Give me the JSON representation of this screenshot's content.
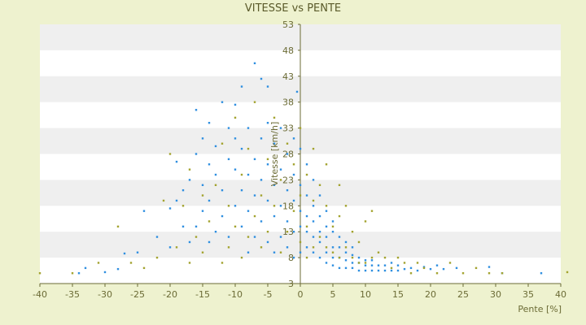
{
  "chart_data": {
    "type": "scatter",
    "title": "VITESSE vs PENTE",
    "xlabel": "Pente [%]",
    "ylabel": "Vitesse [km/h]",
    "xlim": [
      -40,
      40
    ],
    "ylim": [
      3,
      53
    ],
    "x_ticks": [
      -40,
      -35,
      -30,
      -25,
      -20,
      -15,
      -10,
      -5,
      0,
      5,
      10,
      15,
      20,
      25,
      30,
      35,
      40
    ],
    "y_ticks": [
      3,
      8,
      13,
      18,
      23,
      28,
      33,
      38,
      43,
      48,
      53
    ],
    "grid": "horizontal bands",
    "legend": "none",
    "colors": {
      "page_background": "#eef2cf",
      "plot_background": "#ffffff",
      "band": "#efefef",
      "axis": "#6b6b35",
      "text": "#6b6b35",
      "series_blue": "#2f8fe0",
      "series_olive": "#a3a32f"
    },
    "series": [
      {
        "color": "#2f8fe0",
        "points": [
          [
            -34,
            5.0
          ],
          [
            -33,
            6.0
          ],
          [
            -30,
            5.2
          ],
          [
            -28,
            5.8
          ],
          [
            -27,
            8.8
          ],
          [
            -25,
            9.0
          ],
          [
            -24,
            17.0
          ],
          [
            -22,
            12.0
          ],
          [
            -20,
            10.0
          ],
          [
            -20,
            17.5
          ],
          [
            -19,
            19.0
          ],
          [
            -19,
            26.5
          ],
          [
            -18,
            14.0
          ],
          [
            -18,
            21.0
          ],
          [
            -17,
            11.0
          ],
          [
            -17,
            23.0
          ],
          [
            -16,
            14.0
          ],
          [
            -16,
            28.0
          ],
          [
            -16,
            36.5
          ],
          [
            -15,
            17.0
          ],
          [
            -15,
            22.0
          ],
          [
            -15,
            31.0
          ],
          [
            -14,
            11.0
          ],
          [
            -14,
            19.0
          ],
          [
            -14,
            26.0
          ],
          [
            -14,
            34.0
          ],
          [
            -13,
            13.0
          ],
          [
            -13,
            24.0
          ],
          [
            -13,
            29.5
          ],
          [
            -12,
            16.0
          ],
          [
            -12,
            21.0
          ],
          [
            -12,
            38.0
          ],
          [
            -11,
            12.0
          ],
          [
            -11,
            27.0
          ],
          [
            -11,
            33.0
          ],
          [
            -10,
            18.0
          ],
          [
            -10,
            25.0
          ],
          [
            -10,
            31.0
          ],
          [
            -10,
            37.5
          ],
          [
            -9,
            14.0
          ],
          [
            -9,
            21.0
          ],
          [
            -9,
            29.0
          ],
          [
            -9,
            41.0
          ],
          [
            -8,
            9.0
          ],
          [
            -8,
            17.0
          ],
          [
            -8,
            24.0
          ],
          [
            -8,
            33.0
          ],
          [
            -7,
            12.0
          ],
          [
            -7,
            20.0
          ],
          [
            -7,
            27.0
          ],
          [
            -7,
            45.5
          ],
          [
            -6,
            15.0
          ],
          [
            -6,
            23.0
          ],
          [
            -6,
            31.0
          ],
          [
            -6,
            42.5
          ],
          [
            -5,
            11.0
          ],
          [
            -5,
            19.0
          ],
          [
            -5,
            26.0
          ],
          [
            -5,
            34.0
          ],
          [
            -5,
            41.0
          ],
          [
            -4,
            9.0
          ],
          [
            -4,
            16.0
          ],
          [
            -4,
            22.0
          ],
          [
            -4,
            30.0
          ],
          [
            -3,
            12.0
          ],
          [
            -3,
            18.0
          ],
          [
            -3,
            25.0
          ],
          [
            -3,
            33.0
          ],
          [
            -2,
            10.0
          ],
          [
            -2,
            15.0
          ],
          [
            -2,
            21.0
          ],
          [
            -2,
            28.0
          ],
          [
            -1,
            8.0
          ],
          [
            -1,
            13.0
          ],
          [
            -1,
            19.0
          ],
          [
            -1,
            24.0
          ],
          [
            -1,
            31.0
          ],
          [
            -0.5,
            40.0
          ],
          [
            0,
            9.0
          ],
          [
            0,
            14.0
          ],
          [
            0,
            17.0
          ],
          [
            0,
            22.0
          ],
          [
            0,
            29.0
          ],
          [
            1,
            10.0
          ],
          [
            1,
            13.0
          ],
          [
            1,
            16.0
          ],
          [
            1,
            20.0
          ],
          [
            1,
            26.0
          ],
          [
            2,
            9.0
          ],
          [
            2,
            12.0
          ],
          [
            2,
            15.0
          ],
          [
            2,
            18.0
          ],
          [
            2,
            23.0
          ],
          [
            3,
            8.0
          ],
          [
            3,
            11.0
          ],
          [
            3,
            13.0
          ],
          [
            3,
            16.0
          ],
          [
            3,
            20.0
          ],
          [
            4,
            7.0
          ],
          [
            4,
            9.0
          ],
          [
            4,
            12.0
          ],
          [
            4,
            14.0
          ],
          [
            4,
            17.0
          ],
          [
            5,
            6.5
          ],
          [
            5,
            8.0
          ],
          [
            5,
            10.0
          ],
          [
            5,
            13.0
          ],
          [
            5,
            15.0
          ],
          [
            6,
            6.0
          ],
          [
            6,
            8.0
          ],
          [
            6,
            10.0
          ],
          [
            6,
            12.0
          ],
          [
            7,
            6.0
          ],
          [
            7,
            7.5
          ],
          [
            7,
            9.0
          ],
          [
            7,
            11.0
          ],
          [
            8,
            6.0
          ],
          [
            8,
            7.0
          ],
          [
            8,
            8.5
          ],
          [
            8,
            10.0
          ],
          [
            9,
            5.5
          ],
          [
            9,
            7.0
          ],
          [
            9,
            8.0
          ],
          [
            10,
            5.5
          ],
          [
            10,
            6.5
          ],
          [
            10,
            7.5
          ],
          [
            11,
            5.5
          ],
          [
            11,
            6.5
          ],
          [
            11,
            7.5
          ],
          [
            12,
            5.5
          ],
          [
            12,
            6.5
          ],
          [
            13,
            5.5
          ],
          [
            13,
            6.5
          ],
          [
            14,
            5.5
          ],
          [
            14,
            7.0
          ],
          [
            15,
            5.5
          ],
          [
            15,
            6.5
          ],
          [
            16,
            5.8
          ],
          [
            17,
            6.0
          ],
          [
            18,
            5.5
          ],
          [
            19,
            6.2
          ],
          [
            20,
            5.8
          ],
          [
            21,
            6.5
          ],
          [
            22,
            5.8
          ],
          [
            24,
            6.0
          ],
          [
            29,
            6.2
          ],
          [
            31,
            5.0
          ],
          [
            37,
            5.0
          ]
        ]
      },
      {
        "color": "#a3a32f",
        "points": [
          [
            -40,
            5.0
          ],
          [
            -35,
            5.0
          ],
          [
            -31,
            7.0
          ],
          [
            -28,
            14.0
          ],
          [
            -26,
            7.0
          ],
          [
            -24,
            6.0
          ],
          [
            -22,
            8.0
          ],
          [
            -21,
            19.0
          ],
          [
            -20,
            28.0
          ],
          [
            -19,
            10.0
          ],
          [
            -18,
            18.0
          ],
          [
            -17,
            7.0
          ],
          [
            -17,
            25.0
          ],
          [
            -16,
            12.0
          ],
          [
            -15,
            9.0
          ],
          [
            -15,
            20.0
          ],
          [
            -14,
            15.0
          ],
          [
            -13,
            22.0
          ],
          [
            -12,
            7.0
          ],
          [
            -12,
            30.0
          ],
          [
            -11,
            10.0
          ],
          [
            -11,
            18.0
          ],
          [
            -10,
            14.0
          ],
          [
            -10,
            35.0
          ],
          [
            -9,
            8.0
          ],
          [
            -9,
            24.0
          ],
          [
            -8,
            12.0
          ],
          [
            -8,
            29.0
          ],
          [
            -7,
            16.0
          ],
          [
            -7,
            38.0
          ],
          [
            -6,
            10.0
          ],
          [
            -6,
            20.0
          ],
          [
            -5,
            13.0
          ],
          [
            -5,
            27.0
          ],
          [
            -4,
            18.0
          ],
          [
            -4,
            35.0
          ],
          [
            -3,
            9.0
          ],
          [
            -3,
            23.0
          ],
          [
            -2,
            13.0
          ],
          [
            -2,
            30.0
          ],
          [
            -1,
            17.0
          ],
          [
            -1,
            26.0
          ],
          [
            0,
            11.0
          ],
          [
            0,
            20.0
          ],
          [
            0,
            33.0
          ],
          [
            1,
            8.0
          ],
          [
            1,
            14.0
          ],
          [
            1,
            24.0
          ],
          [
            2,
            10.0
          ],
          [
            2,
            19.0
          ],
          [
            2,
            29.0
          ],
          [
            3,
            12.0
          ],
          [
            3,
            22.0
          ],
          [
            4,
            10.0
          ],
          [
            4,
            18.0
          ],
          [
            4,
            26.0
          ],
          [
            5,
            9.0
          ],
          [
            5,
            14.0
          ],
          [
            6,
            8.0
          ],
          [
            6,
            16.0
          ],
          [
            6,
            22.0
          ],
          [
            7,
            10.0
          ],
          [
            7,
            18.0
          ],
          [
            8,
            8.0
          ],
          [
            8,
            13.0
          ],
          [
            9,
            7.0
          ],
          [
            9,
            11.0
          ],
          [
            10,
            7.0
          ],
          [
            10,
            15.0
          ],
          [
            11,
            8.0
          ],
          [
            11,
            17.0
          ],
          [
            12,
            9.0
          ],
          [
            13,
            8.0
          ],
          [
            14,
            6.0
          ],
          [
            15,
            8.0
          ],
          [
            16,
            7.0
          ],
          [
            17,
            5.0
          ],
          [
            18,
            7.0
          ],
          [
            19,
            6.0
          ],
          [
            21,
            5.0
          ],
          [
            23,
            7.0
          ],
          [
            25,
            5.0
          ],
          [
            27,
            6.0
          ],
          [
            29,
            5.0
          ],
          [
            31,
            5.0
          ],
          [
            41,
            5.2
          ]
        ]
      }
    ]
  }
}
